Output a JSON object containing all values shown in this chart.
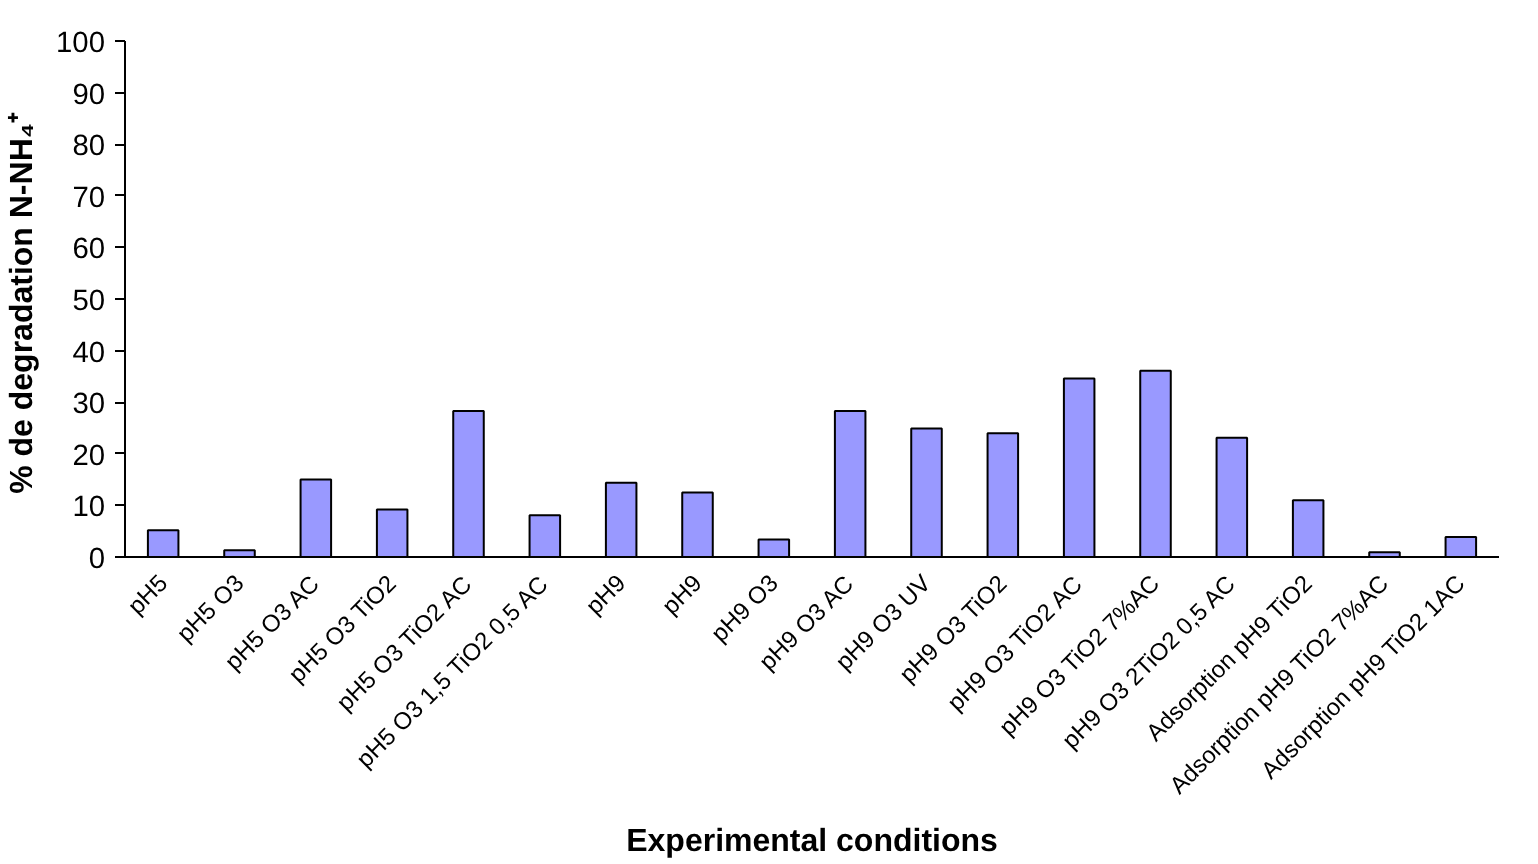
{
  "chart_data": {
    "type": "bar",
    "xlabel": "Experimental conditions",
    "ylabel": "% de degradation  N-NH₄⁺",
    "categories": [
      "pH5",
      "pH5 O3",
      "pH5 O3 AC",
      "pH5 O3 TiO2",
      "pH5 O3 TiO2 AC",
      "pH5 O3 1,5 TiO2 0,5 AC",
      "pH9",
      "pH9",
      "pH9 O3",
      "pH9 O3 AC",
      "pH9 O3 UV",
      "pH9 O3 TiO2",
      "pH9 O3 TiO2 AC",
      "pH9 O3 TiO2 7%AC",
      "pH9 O3 2TiO2 0,5 AC",
      "Adsorption pH9 TiO2",
      "Adsorption pH9 TiO2 7%AC",
      "Adsorption pH9 TiO2 1AC"
    ],
    "values": [
      5.2,
      1.3,
      15.0,
      9.2,
      28.3,
      8.1,
      14.4,
      12.5,
      3.4,
      28.3,
      24.9,
      24.0,
      34.6,
      36.1,
      23.1,
      11.0,
      0.9,
      3.9
    ],
    "color": "#9999ff",
    "ylim": [
      0,
      100
    ],
    "yticks": [
      0,
      10,
      20,
      30,
      40,
      50,
      60,
      70,
      80,
      90,
      100
    ],
    "grid": false
  }
}
